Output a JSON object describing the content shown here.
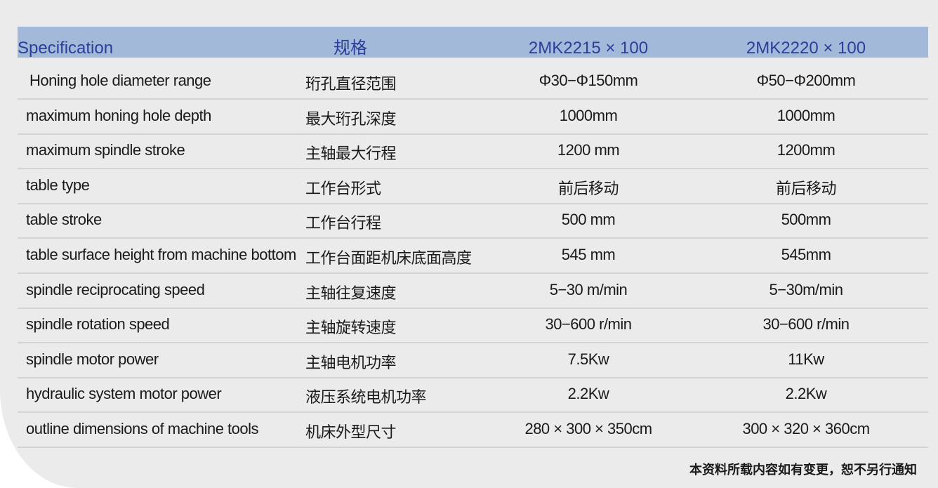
{
  "header": {
    "spec": "Specification",
    "spec_cn": "规格",
    "model1": "2MK2215 × 100",
    "model2": "2MK2220 × 100"
  },
  "rows": [
    {
      "en": "Honing hole diameter range",
      "cn": "珩孔直径范围",
      "m1": "Φ30−Φ150mm",
      "m2": "Φ50−Φ200mm"
    },
    {
      "en": "maximum honing hole depth",
      "cn": "最大珩孔深度",
      "m1": "1000mm",
      "m2": "1000mm"
    },
    {
      "en": "maximum spindle stroke",
      "cn": "主轴最大行程",
      "m1": "1200 mm",
      "m2": "1200mm"
    },
    {
      "en": "table type",
      "cn": "工作台形式",
      "m1": "前后移动",
      "m2": "前后移动"
    },
    {
      "en": "table stroke",
      "cn": "工作台行程",
      "m1": "500 mm",
      "m2": "500mm"
    },
    {
      "en": "table surface height from machine bottom",
      "cn": "工作台面距机床底面高度",
      "m1": "545 mm",
      "m2": "545mm"
    },
    {
      "en": "spindle reciprocating speed",
      "cn": "主轴往复速度",
      "m1": "5−30 m/min",
      "m2": "5−30m/min"
    },
    {
      "en": "spindle rotation speed",
      "cn": "主轴旋转速度",
      "m1": "30−600 r/min",
      "m2": "30−600 r/min"
    },
    {
      "en": "spindle motor power",
      "cn": "主轴电机功率",
      "m1": "7.5Kw",
      "m2": "11Kw"
    },
    {
      "en": "hydraulic system motor power",
      "cn": "液压系统电机功率",
      "m1": "2.2Kw",
      "m2": "2.2Kw"
    },
    {
      "en": "outline dimensions of machine tools",
      "cn": "机床外型尺寸",
      "m1": "280 × 300 × 350cm",
      "m2": "300 × 320 × 360cm"
    }
  ],
  "note": "本资料所载内容如有变更，恕不另行通知",
  "colors": {
    "header_bg": "#a3b9d9",
    "header_text": "#2b3f9a",
    "panel_bg": "#ebebeb"
  }
}
